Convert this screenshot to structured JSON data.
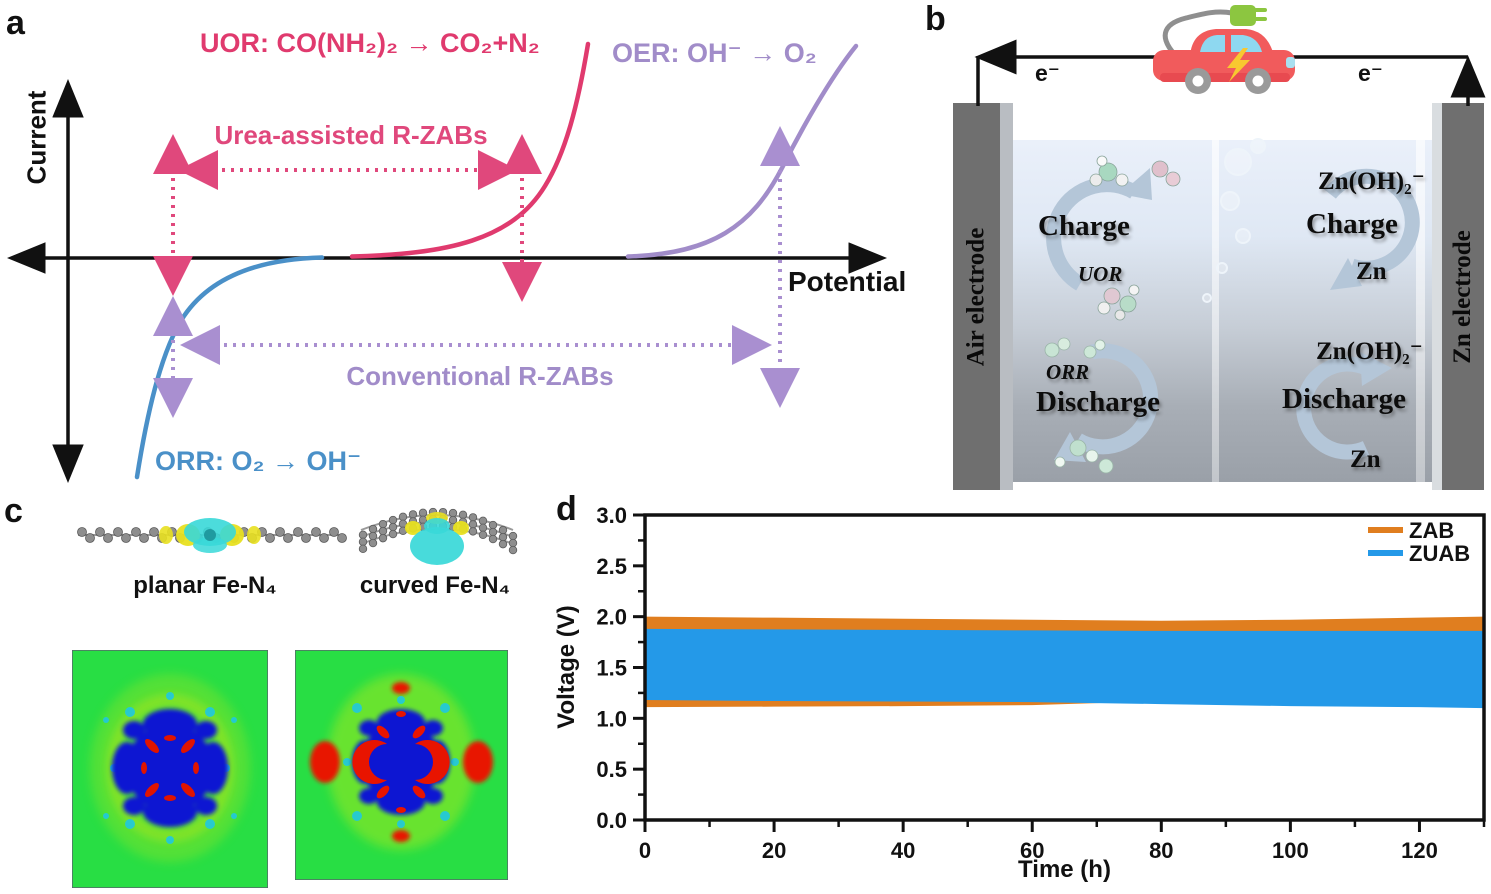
{
  "figure": {
    "panel_a_letter": "a",
    "panel_b_letter": "b",
    "panel_c_letter": "c",
    "panel_d_letter": "d"
  },
  "panel_a": {
    "current_axis_label": "Current",
    "potential_axis_label": "Potential",
    "uor_equation": "UOR: CO(NH₂)₂ → CO₂+N₂",
    "oer_equation": "OER: OH⁻ → O₂",
    "orr_equation": "ORR: O₂ → OH⁻",
    "urea_assisted_label": "Urea-assisted R-ZABs",
    "conventional_label": "Conventional R-ZABs",
    "colors": {
      "uor_pink": "#E03A6E",
      "oer_purple": "#A18CC9",
      "orr_blue": "#4A90C8"
    }
  },
  "panel_b": {
    "electron_left": "e⁻",
    "electron_right": "e⁻",
    "air_electrode": "Air electrode",
    "zn_electrode": "Zn electrode",
    "charge_left": "Charge",
    "uor_label": "UOR",
    "discharge_left": "Discharge",
    "orr_label": "ORR",
    "zincate_top": "Zn(OH)₂⁻",
    "charge_right": "Charge",
    "zn_top": "Zn",
    "zincate_bottom": "Zn(OH)₂⁻",
    "discharge_right": "Discharge",
    "zn_bottom": "Zn"
  },
  "panel_c": {
    "planar_label": "planar Fe-N₄",
    "curved_label": "curved Fe-N₄"
  },
  "chart_data": {
    "type": "area",
    "title": "",
    "xlabel": "Time (h)",
    "ylabel": "Voltage (V)",
    "xlim": [
      0,
      130
    ],
    "ylim": [
      0.0,
      3.0
    ],
    "x_ticks": [
      0,
      20,
      40,
      60,
      80,
      100,
      120
    ],
    "y_ticks": [
      0.0,
      0.5,
      1.0,
      1.5,
      2.0,
      2.5,
      3.0
    ],
    "grid": false,
    "legend_position": "top-right",
    "series": [
      {
        "name": "ZAB",
        "color": "#E07E1F",
        "x": [
          0,
          20,
          40,
          60,
          80,
          100,
          120,
          130
        ],
        "charge_voltage": [
          2.0,
          1.99,
          1.98,
          1.97,
          1.96,
          1.97,
          1.99,
          2.0
        ],
        "discharge_voltage": [
          1.11,
          1.115,
          1.12,
          1.13,
          1.17,
          1.17,
          1.17,
          1.17
        ]
      },
      {
        "name": "ZUAB",
        "color": "#2499E8",
        "x": [
          0,
          20,
          40,
          60,
          80,
          100,
          120,
          130
        ],
        "charge_voltage": [
          1.88,
          1.875,
          1.87,
          1.865,
          1.86,
          1.86,
          1.86,
          1.86
        ],
        "discharge_voltage": [
          1.18,
          1.17,
          1.165,
          1.16,
          1.14,
          1.12,
          1.11,
          1.1
        ]
      }
    ]
  }
}
